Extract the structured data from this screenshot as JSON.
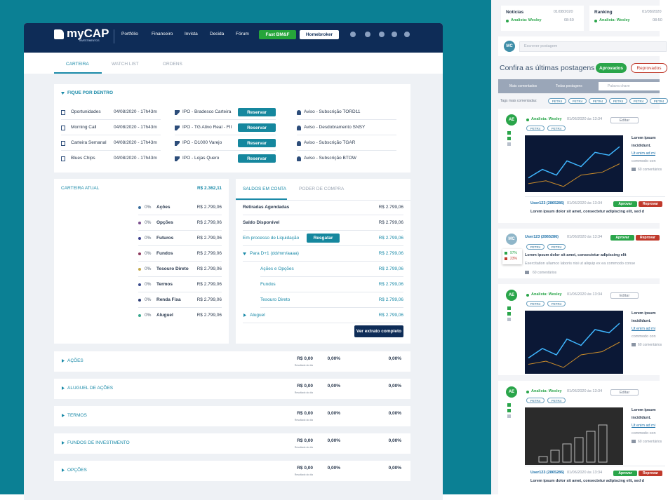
{
  "header": {
    "logo": "myCAP",
    "logo_tagline": "INVESTIMENTOS",
    "nav": [
      "Portfólio",
      "Financeiro",
      "Invista",
      "Decida",
      "Fórum"
    ],
    "fast_button": "Fast BM&F",
    "homebroker_button": "Homebroker"
  },
  "tabs": [
    "CARTEIRA",
    "WATCH LIST",
    "ORDENS"
  ],
  "fique_por_dentro": {
    "title": "FIQUE POR DENTRO",
    "reports": [
      {
        "name": "Oportunidades",
        "date": "04/08/2020 - 17h43m"
      },
      {
        "name": "Morning Call",
        "date": "04/08/2020 - 17h43m"
      },
      {
        "name": "Carteira Semanal",
        "date": "04/08/2020 - 17h43m"
      },
      {
        "name": "Blues Chips",
        "date": "04/08/2020 - 17h43m"
      }
    ],
    "ipos": [
      {
        "name": "IPO - Bradesco Carteira",
        "action": "Reservar"
      },
      {
        "name": "IPO - TG Ativo Real - FII",
        "action": "Reservar"
      },
      {
        "name": "IPO - D1000 Varejo",
        "action": "Reservar"
      },
      {
        "name": "IPO - Lojas Quero",
        "action": "Reservar"
      }
    ],
    "notices": [
      "Aviso - Subscrição TORD11",
      "Aviso - Desdobramento SNSY",
      "Aviso - Subscrição TGAR",
      "Aviso - Subscrição BTOW"
    ]
  },
  "carteira_atual": {
    "title": "CARTEIRA ATUAL",
    "total": "R$ 2.362,11",
    "items": [
      {
        "share": "0%",
        "name": "Ações",
        "value": "R$ 2.799,06"
      },
      {
        "share": "0%",
        "name": "Opções",
        "value": "R$ 2.799,06"
      },
      {
        "share": "0%",
        "name": "Futuros",
        "value": "R$ 2.799,06"
      },
      {
        "share": "0%",
        "name": "Fundos",
        "value": "R$ 2.799,06"
      },
      {
        "share": "0%",
        "name": "Tesouro Direto",
        "value": "R$ 2.799,06"
      },
      {
        "share": "0%",
        "name": "Termos",
        "value": "R$ 2.799,06"
      },
      {
        "share": "0%",
        "name": "Renda Fixa",
        "value": "R$ 2.799,06"
      },
      {
        "share": "0%",
        "name": "Aluguel",
        "value": "R$ 2.799,06"
      }
    ]
  },
  "saldos": {
    "tabs": [
      "SALDOS EM CONTA",
      "PODER DE COMPRA"
    ],
    "rows": [
      {
        "label": "Retiradas Agendadas",
        "value": "R$ 2.799,06"
      },
      {
        "label": "Saldo Disponível",
        "value": "R$ 2.799,06"
      },
      {
        "label": "Em processo de Liquidação",
        "value": "R$ 2.799,06"
      },
      {
        "label": "Para D+1 (dd/mm/aaaa)",
        "value": "R$ 2.799,06"
      },
      {
        "label": "Ações e Opções",
        "value": "R$ 2.799,06"
      },
      {
        "label": "Fundos",
        "value": "R$ 2.799,06"
      },
      {
        "label": "Tesouro Direto",
        "value": "R$ 2.799,06"
      },
      {
        "label": "Aluguel",
        "value": "R$ 2.799,06"
      }
    ],
    "resgatar_button": "Resgatar",
    "extrato_button": "Ver extrato completo"
  },
  "sections": [
    {
      "title": "AÇÕES",
      "result": "R$ 0,00",
      "result_caption": "Resultado do dia",
      "change_1": "0,00%",
      "change_2": "0,00%"
    },
    {
      "title": "ALUGUEL DE AÇÕES",
      "result": "R$ 0,00",
      "result_caption": "Resultado do dia",
      "change_1": "0,00%",
      "change_2": "0,00%"
    },
    {
      "title": "TERMOS",
      "result": "R$ 0,00",
      "result_caption": "Resultado do dia",
      "change_1": "0,00%",
      "change_2": "0,00%"
    },
    {
      "title": "FUNDOS DE INVESTIMENTO",
      "result": "R$ 0,00",
      "result_caption": "Resultado do dia",
      "change_1": "0,00%",
      "change_2": "0,00%"
    },
    {
      "title": "OPÇÕES",
      "result": "R$ 0,00",
      "result_caption": "Resultado do dia",
      "change_1": "0,00%",
      "change_2": "0,00%"
    }
  ],
  "feed": {
    "summary_cards": [
      {
        "title": "Notícias",
        "date": "01/08/2020",
        "author": "Analista: Wesley",
        "time": "08:50"
      },
      {
        "title": "Ranking",
        "date": "01/08/2020",
        "author": "Analista: Wesley",
        "time": "08:50"
      }
    ],
    "composer": {
      "avatar": "MC",
      "placeholder": "Escrever postagem"
    },
    "heading": "Confira as últimas postagens",
    "filters": [
      "Aprovados",
      "Reprovados"
    ],
    "sort_options": [
      "Mais comentados",
      "Todas postagens"
    ],
    "search_placeholder": "Palavra chave",
    "tags_label": "Tags mais comentadas:",
    "top_tags": [
      "PETR4",
      "PETR4",
      "PETR4",
      "PETR4",
      "PETR4",
      "PETR4"
    ],
    "posts": [
      {
        "avatar": "AE",
        "author": "Analista: Wesley",
        "date": "01/06/2020 às 13:34",
        "action": "Editar",
        "tags": [
          "PETR4",
          "PETR4"
        ],
        "text_lines": [
          "Lorem ipsum",
          "incididunt.",
          "Ut enim ad mi",
          "commodo con"
        ],
        "comments": "60 comentários",
        "reply": {
          "author": "User123 (2865286)",
          "date": "01/06/2020 às 13:34",
          "approve": "Aprovar",
          "reject": "Reprovar",
          "text": "Lorem ipsum dolor sit amet, consectetur adipiscing elit, sed d"
        }
      },
      {
        "avatar": "MC",
        "author": "User123 (2865286)",
        "date": "01/06/2020 às 13:34",
        "approve": "Aprovar",
        "reject": "Reprovar",
        "tags": [
          "PETR4",
          "PETR4"
        ],
        "text_lines": [
          "Lorem ipsum dolor sit amet, consectetur adipiscing elit",
          "Exercitation ullamco laboris nisi ut aliquip ex ea commodo conse"
        ],
        "comments": "60 comentários",
        "votes": {
          "up": "97%",
          "down": "23%"
        }
      },
      {
        "avatar": "AE",
        "author": "Analista: Wesley",
        "date": "01/06/2020 às 13:34",
        "action": "Editar",
        "tags": [
          "PETR4",
          "PETR4"
        ],
        "text_lines": [
          "Lorem ipsum",
          "incididunt.",
          "Ut enim ad mi",
          "commodo con"
        ],
        "comments": "60 comentários"
      },
      {
        "avatar": "AE",
        "author": "Analista: Wesley",
        "date": "01/06/2020 às 13:34",
        "action": "Editar",
        "tags": [
          "PETR4",
          "PETR4"
        ],
        "text_lines": [
          "Lorem ipsum",
          "incididunt.",
          "Ut enim ad mi",
          "commodo con"
        ],
        "comments": "60 comentários",
        "reply": {
          "author": "User123 (2865286)",
          "date": "01/06/2020 às 13:34",
          "approve": "Aprovar",
          "reject": "Reprovar",
          "text": "Lorem ipsum dolor sit amet, consectetur adipiscing elit, sed d"
        }
      }
    ]
  }
}
